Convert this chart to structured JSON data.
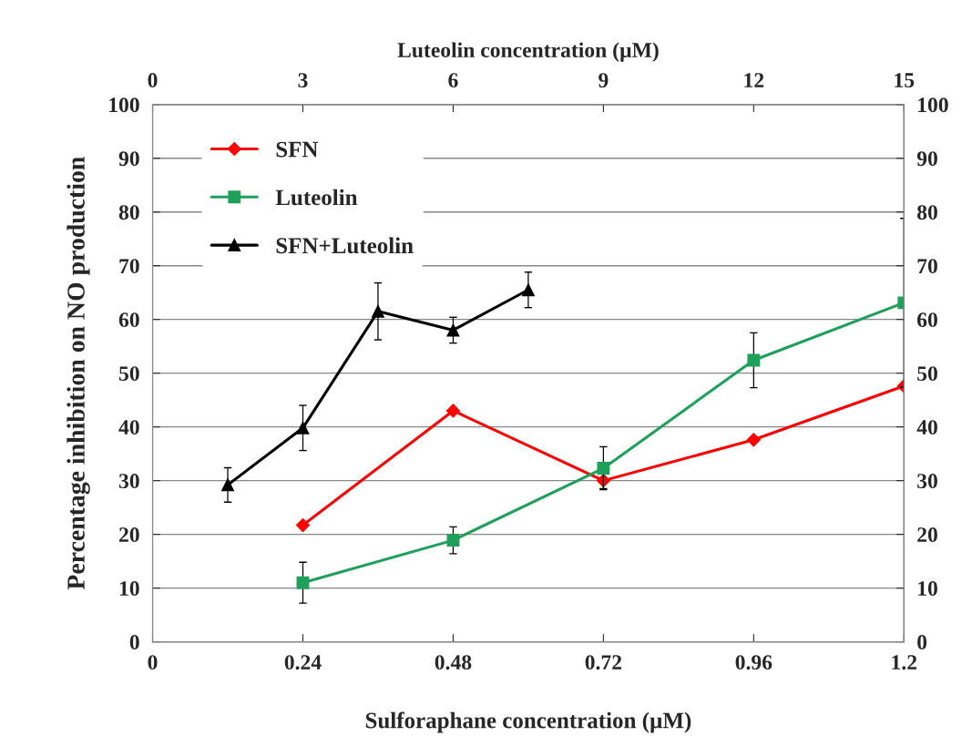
{
  "chart_data": {
    "type": "line",
    "xlabel": "Sulforaphane concentration (µM)",
    "x2label": "Luteolin concentration (µM)",
    "ylabel": "Percentage inhibition on NO production",
    "xlim": [
      0,
      1.2
    ],
    "xticks": [
      0,
      0.24,
      0.48,
      0.72,
      0.96,
      1.2
    ],
    "x2lim": [
      0,
      15
    ],
    "x2ticks": [
      0,
      3,
      6,
      9,
      12,
      15
    ],
    "ylim": [
      0,
      100
    ],
    "yticks": [
      0,
      10,
      20,
      30,
      40,
      50,
      60,
      70,
      80,
      90,
      100
    ],
    "y2lim": [
      0,
      100
    ],
    "y2ticks": [
      0,
      10,
      20,
      30,
      40,
      50,
      60,
      70,
      80,
      90,
      100
    ],
    "grid": "y",
    "legend": "top left",
    "series": [
      {
        "name": "SFN",
        "color": "#ff0000",
        "marker": "diamond",
        "x": [
          0.24,
          0.48,
          0.72,
          0.96,
          1.2
        ],
        "values": [
          21.7,
          43,
          30,
          37.6,
          47.6
        ],
        "errors": [
          null,
          null,
          1.5,
          null,
          null
        ]
      },
      {
        "name": "Luteolin",
        "color": "#1fa05a",
        "marker": "square",
        "axis": "x2",
        "x": [
          3,
          6,
          9,
          12,
          15
        ],
        "values": [
          11,
          18.9,
          32.3,
          52.4,
          63.1
        ],
        "errors": [
          3.8,
          2.5,
          4,
          5.1,
          15.7
        ]
      },
      {
        "name": "SFN+Luteolin",
        "color": "#000000",
        "marker": "triangle",
        "x": [
          0.12,
          0.24,
          0.36,
          0.48,
          0.6
        ],
        "values": [
          29.2,
          39.8,
          61.5,
          58,
          65.5
        ],
        "errors": [
          3.2,
          4.2,
          5.3,
          2.4,
          3.3
        ]
      }
    ]
  }
}
